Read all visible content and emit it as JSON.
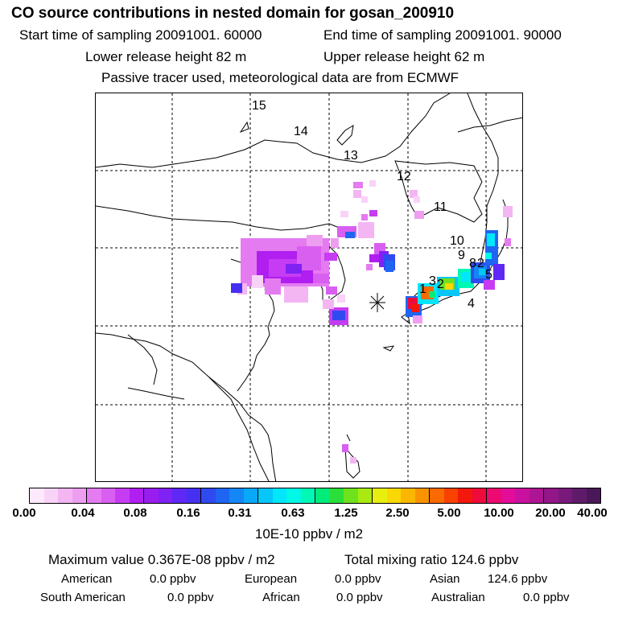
{
  "title": "CO  source contributions in nested domain for gosan_200910",
  "header": {
    "start_label": "Start time of sampling 20091001. 60000",
    "end_label": "End time of sampling 20091001. 90000",
    "lower_release": "Lower release height   82 m",
    "upper_release": "Upper release height   62 m",
    "tracer_note": "Passive tracer used, meteorological data are from ECMWF"
  },
  "map": {
    "trajectory_labels": [
      "15",
      "14",
      "13",
      "12",
      "11",
      "10",
      "9",
      "8",
      "2",
      "5",
      "3",
      "2",
      "1",
      "4"
    ],
    "receptor_marker": "asterisk"
  },
  "colorbar": {
    "colors": [
      "#fde9fb",
      "#f9d3f7",
      "#f3b6f3",
      "#ee9ef0",
      "#e57bf0",
      "#d95ff1",
      "#c63cf3",
      "#b01ef0",
      "#9a1df0",
      "#7f22f4",
      "#5f28f6",
      "#4530f2",
      "#2f4af0",
      "#1e66f2",
      "#1487f6",
      "#0aa8f8",
      "#06c6fa",
      "#00e6fb",
      "#00f8e6",
      "#00f8b6",
      "#00ec7a",
      "#2cde3a",
      "#6ee21c",
      "#a8ea12",
      "#e8ee10",
      "#fad806",
      "#fbb600",
      "#f99300",
      "#f96a00",
      "#f94100",
      "#f4180c",
      "#ee0a3a",
      "#ec0a72",
      "#e40c9a",
      "#c8119e",
      "#ad1594",
      "#921687",
      "#781a7a",
      "#5f1b6a",
      "#4a1858"
    ],
    "tick_labels": [
      "0.00",
      "0.04",
      "0.08",
      "0.16",
      "0.31",
      "0.63",
      "1.25",
      "2.50",
      "5.00",
      "10.00",
      "20.00",
      "40.00"
    ],
    "unit": "10E-10 ppbv / m2"
  },
  "stats": {
    "maximum": "Maximum value  0.367E-08 ppbv / m2",
    "total": "Total mixing ratio      124.6 ppbv",
    "regions": [
      {
        "name": "American",
        "value": "0.0 ppbv"
      },
      {
        "name": "European",
        "value": "0.0 ppbv"
      },
      {
        "name": "Asian",
        "value": "124.6 ppbv"
      },
      {
        "name": "South American",
        "value": "0.0 ppbv"
      },
      {
        "name": "African",
        "value": "0.0 ppbv"
      },
      {
        "name": "Australian",
        "value": "0.0 ppbv"
      }
    ]
  }
}
